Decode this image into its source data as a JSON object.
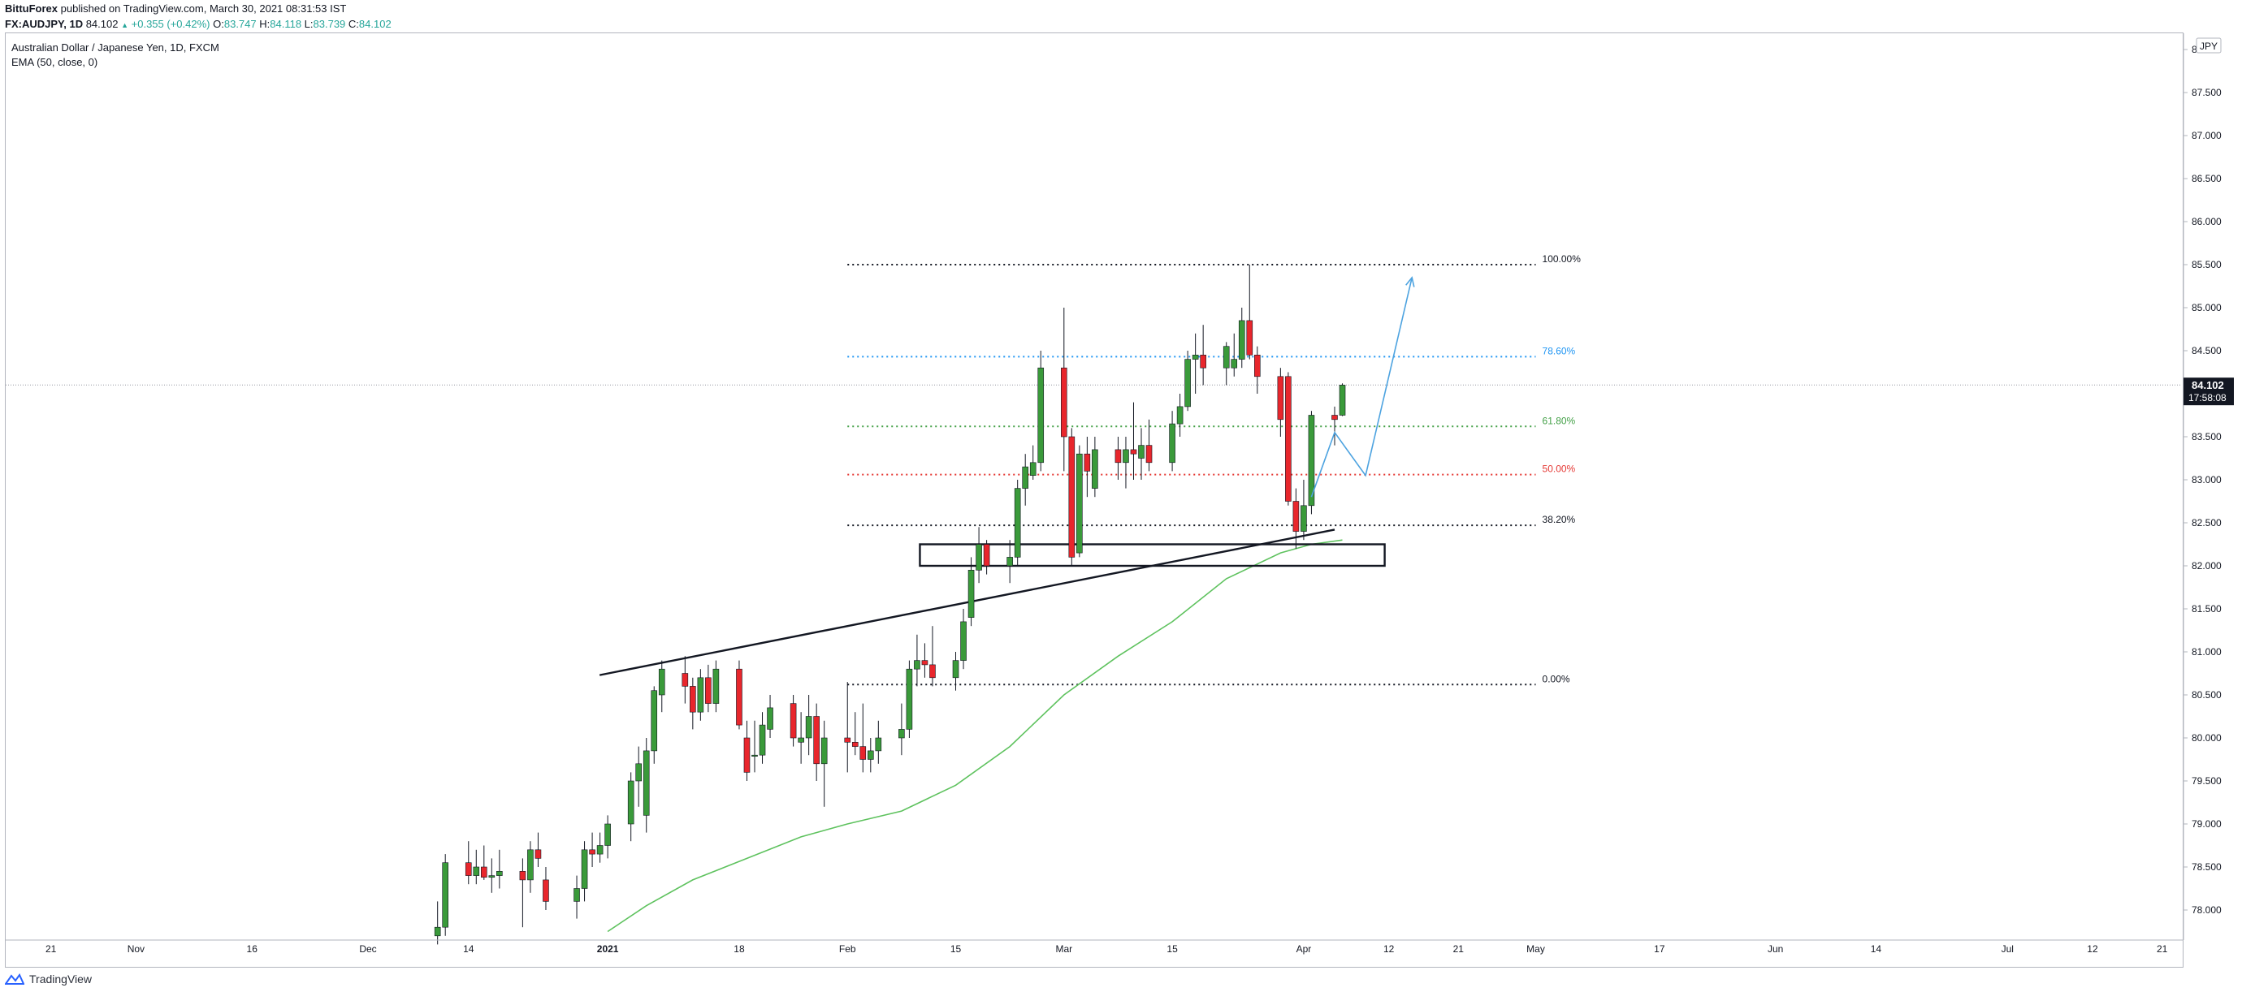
{
  "header": {
    "author": "BittuForex",
    "published": "published on TradingView.com, March 30, 2021 08:31:53 IST",
    "symbol": "FX:AUDJPY, 1D",
    "last": "84.102",
    "change": "+0.355 (+0.42%)",
    "open_label": "O:",
    "open": "83.747",
    "high_label": "H:",
    "high": "84.118",
    "low_label": "L:",
    "low": "83.739",
    "close_label": "C:",
    "close": "84.102"
  },
  "legend": {
    "title": "Australian Dollar / Japanese Yen, 1D, FXCM",
    "indicator": "EMA (50, close, 0)"
  },
  "footer": {
    "brand": "TradingView"
  },
  "colors": {
    "up": "#3a9a3a",
    "down": "#e8262c",
    "ema": "#5ec25e",
    "fib_100": "#131722",
    "fib_786": "#2196f3",
    "fib_618": "#43a047",
    "fib_50": "#e53935",
    "fib_382": "#131722",
    "fib_0": "#131722",
    "projection": "#4da3e0",
    "price_tag": "#131722"
  },
  "chart_data": {
    "type": "candlestick",
    "currency_badge": "JPY",
    "price_tag": {
      "price": 84.102,
      "label": "84.102",
      "countdown": "17:58:08"
    },
    "y_axis": {
      "range": [
        77.6,
        88.0
      ],
      "ticks": [
        {
          "value": 78.0,
          "label": "78.000"
        },
        {
          "value": 78.5,
          "label": "78.500"
        },
        {
          "value": 79.0,
          "label": "79.000"
        },
        {
          "value": 79.5,
          "label": "79.500"
        },
        {
          "value": 80.0,
          "label": "80.000"
        },
        {
          "value": 80.5,
          "label": "80.500"
        },
        {
          "value": 81.0,
          "label": "81.000"
        },
        {
          "value": 81.5,
          "label": "81.500"
        },
        {
          "value": 82.0,
          "label": "82.000"
        },
        {
          "value": 82.5,
          "label": "82.500"
        },
        {
          "value": 83.0,
          "label": "83.000"
        },
        {
          "value": 83.5,
          "label": "83.500"
        },
        {
          "value": 84.0,
          "label": "84.000"
        },
        {
          "value": 84.5,
          "label": "84.500"
        },
        {
          "value": 85.0,
          "label": "85.000"
        },
        {
          "value": 85.5,
          "label": "85.500"
        },
        {
          "value": 86.0,
          "label": "86.000"
        },
        {
          "value": 86.5,
          "label": "86.500"
        },
        {
          "value": 87.0,
          "label": "87.000"
        },
        {
          "value": 87.5,
          "label": "87.500"
        },
        {
          "value": 88.0,
          "label": "88.000"
        }
      ]
    },
    "x_axis": {
      "labels": [
        {
          "date": "2020-10-21",
          "label": "21",
          "bold": false
        },
        {
          "date": "2020-11-01",
          "label": "Nov",
          "bold": false
        },
        {
          "date": "2020-11-16",
          "label": "16",
          "bold": false
        },
        {
          "date": "2020-12-01",
          "label": "Dec",
          "bold": false
        },
        {
          "date": "2020-12-14",
          "label": "14",
          "bold": false
        },
        {
          "date": "2021-01-01",
          "label": "2021",
          "bold": true
        },
        {
          "date": "2021-01-18",
          "label": "18",
          "bold": false
        },
        {
          "date": "2021-02-01",
          "label": "Feb",
          "bold": false
        },
        {
          "date": "2021-02-15",
          "label": "15",
          "bold": false
        },
        {
          "date": "2021-03-01",
          "label": "Mar",
          "bold": false
        },
        {
          "date": "2021-03-15",
          "label": "15",
          "bold": false
        },
        {
          "date": "2021-04-01",
          "label": "Apr",
          "bold": false
        },
        {
          "date": "2021-04-12",
          "label": "12",
          "bold": false
        },
        {
          "date": "2021-04-21",
          "label": "21",
          "bold": false
        },
        {
          "date": "2021-05-01",
          "label": "May",
          "bold": false
        },
        {
          "date": "2021-05-17",
          "label": "17",
          "bold": false
        },
        {
          "date": "2021-06-01",
          "label": "Jun",
          "bold": false
        },
        {
          "date": "2021-06-14",
          "label": "14",
          "bold": false
        },
        {
          "date": "2021-07-01",
          "label": "Jul",
          "bold": false
        },
        {
          "date": "2021-07-12",
          "label": "12",
          "bold": false
        },
        {
          "date": "2021-07-21",
          "label": "21",
          "bold": false
        }
      ]
    },
    "candles": [
      {
        "date": "2020-12-10",
        "o": 77.7,
        "h": 78.1,
        "l": 77.6,
        "c": 77.8
      },
      {
        "date": "2020-12-11",
        "o": 77.8,
        "h": 78.65,
        "l": 77.7,
        "c": 78.55
      },
      {
        "date": "2020-12-14",
        "o": 78.55,
        "h": 78.8,
        "l": 78.3,
        "c": 78.4
      },
      {
        "date": "2020-12-15",
        "o": 78.4,
        "h": 78.7,
        "l": 78.3,
        "c": 78.5
      },
      {
        "date": "2020-12-16",
        "o": 78.5,
        "h": 78.75,
        "l": 78.35,
        "c": 78.38
      },
      {
        "date": "2020-12-17",
        "o": 78.38,
        "h": 78.6,
        "l": 78.2,
        "c": 78.4
      },
      {
        "date": "2020-12-18",
        "o": 78.4,
        "h": 78.7,
        "l": 78.25,
        "c": 78.45
      },
      {
        "date": "2020-12-21",
        "o": 78.45,
        "h": 78.6,
        "l": 77.8,
        "c": 78.35
      },
      {
        "date": "2020-12-22",
        "o": 78.35,
        "h": 78.8,
        "l": 78.2,
        "c": 78.7
      },
      {
        "date": "2020-12-23",
        "o": 78.7,
        "h": 78.9,
        "l": 78.5,
        "c": 78.6
      },
      {
        "date": "2020-12-24",
        "o": 78.35,
        "h": 78.5,
        "l": 78.0,
        "c": 78.1
      },
      {
        "date": "2020-12-28",
        "o": 78.1,
        "h": 78.4,
        "l": 77.9,
        "c": 78.25
      },
      {
        "date": "2020-12-29",
        "o": 78.25,
        "h": 78.8,
        "l": 78.1,
        "c": 78.7
      },
      {
        "date": "2020-12-30",
        "o": 78.7,
        "h": 78.9,
        "l": 78.5,
        "c": 78.65
      },
      {
        "date": "2020-12-31",
        "o": 78.65,
        "h": 78.9,
        "l": 78.55,
        "c": 78.75
      },
      {
        "date": "2021-01-01",
        "o": 78.75,
        "h": 79.1,
        "l": 78.6,
        "c": 79.0
      },
      {
        "date": "2021-01-04",
        "o": 79.0,
        "h": 79.6,
        "l": 78.8,
        "c": 79.5
      },
      {
        "date": "2021-01-05",
        "o": 79.5,
        "h": 79.9,
        "l": 79.2,
        "c": 79.7
      },
      {
        "date": "2021-01-06",
        "o": 79.1,
        "h": 80.0,
        "l": 78.9,
        "c": 79.85
      },
      {
        "date": "2021-01-07",
        "o": 79.85,
        "h": 80.6,
        "l": 79.7,
        "c": 80.55
      },
      {
        "date": "2021-01-08",
        "o": 80.5,
        "h": 80.9,
        "l": 80.3,
        "c": 80.8
      },
      {
        "date": "2021-01-11",
        "o": 80.75,
        "h": 80.95,
        "l": 80.4,
        "c": 80.6
      },
      {
        "date": "2021-01-12",
        "o": 80.6,
        "h": 80.7,
        "l": 80.1,
        "c": 80.3
      },
      {
        "date": "2021-01-13",
        "o": 80.3,
        "h": 80.8,
        "l": 80.2,
        "c": 80.7
      },
      {
        "date": "2021-01-14",
        "o": 80.7,
        "h": 80.85,
        "l": 80.3,
        "c": 80.4
      },
      {
        "date": "2021-01-15",
        "o": 80.4,
        "h": 80.9,
        "l": 80.3,
        "c": 80.8
      },
      {
        "date": "2021-01-18",
        "o": 80.8,
        "h": 80.9,
        "l": 80.1,
        "c": 80.15
      },
      {
        "date": "2021-01-19",
        "o": 80.0,
        "h": 80.2,
        "l": 79.5,
        "c": 79.6
      },
      {
        "date": "2021-01-20",
        "o": 79.8,
        "h": 80.2,
        "l": 79.6,
        "c": 79.8
      },
      {
        "date": "2021-01-21",
        "o": 79.8,
        "h": 80.3,
        "l": 79.7,
        "c": 80.15
      },
      {
        "date": "2021-01-22",
        "o": 80.1,
        "h": 80.5,
        "l": 80.0,
        "c": 80.35
      },
      {
        "date": "2021-01-25",
        "o": 80.4,
        "h": 80.5,
        "l": 79.9,
        "c": 80.0
      },
      {
        "date": "2021-01-26",
        "o": 79.95,
        "h": 80.3,
        "l": 79.7,
        "c": 80.0
      },
      {
        "date": "2021-01-27",
        "o": 80.0,
        "h": 80.5,
        "l": 79.8,
        "c": 80.25
      },
      {
        "date": "2021-01-28",
        "o": 80.25,
        "h": 80.4,
        "l": 79.5,
        "c": 79.7
      },
      {
        "date": "2021-01-29",
        "o": 79.7,
        "h": 80.2,
        "l": 79.2,
        "c": 80.0
      },
      {
        "date": "2021-02-01",
        "o": 80.0,
        "h": 80.65,
        "l": 79.6,
        "c": 79.95
      },
      {
        "date": "2021-02-02",
        "o": 79.95,
        "h": 80.3,
        "l": 79.8,
        "c": 79.9
      },
      {
        "date": "2021-02-03",
        "o": 79.9,
        "h": 80.4,
        "l": 79.6,
        "c": 79.75
      },
      {
        "date": "2021-02-04",
        "o": 79.75,
        "h": 80.0,
        "l": 79.6,
        "c": 79.85
      },
      {
        "date": "2021-02-05",
        "o": 79.85,
        "h": 80.2,
        "l": 79.7,
        "c": 80.0
      },
      {
        "date": "2021-02-08",
        "o": 80.0,
        "h": 80.4,
        "l": 79.8,
        "c": 80.1
      },
      {
        "date": "2021-02-09",
        "o": 80.1,
        "h": 80.9,
        "l": 80.0,
        "c": 80.8
      },
      {
        "date": "2021-02-10",
        "o": 80.8,
        "h": 81.2,
        "l": 80.6,
        "c": 80.9
      },
      {
        "date": "2021-02-11",
        "o": 80.9,
        "h": 81.1,
        "l": 80.7,
        "c": 80.85
      },
      {
        "date": "2021-02-12",
        "o": 80.85,
        "h": 81.3,
        "l": 80.6,
        "c": 80.7
      },
      {
        "date": "2021-02-15",
        "o": 80.7,
        "h": 81.0,
        "l": 80.55,
        "c": 80.9
      },
      {
        "date": "2021-02-16",
        "o": 80.9,
        "h": 81.5,
        "l": 80.8,
        "c": 81.35
      },
      {
        "date": "2021-02-17",
        "o": 81.4,
        "h": 82.1,
        "l": 81.3,
        "c": 81.95
      },
      {
        "date": "2021-02-18",
        "o": 81.95,
        "h": 82.45,
        "l": 81.8,
        "c": 82.25
      },
      {
        "date": "2021-02-19",
        "o": 82.25,
        "h": 82.3,
        "l": 81.9,
        "c": 82.0
      },
      {
        "date": "2021-02-22",
        "o": 82.0,
        "h": 82.3,
        "l": 81.8,
        "c": 82.1
      },
      {
        "date": "2021-02-23",
        "o": 82.1,
        "h": 83.0,
        "l": 82.0,
        "c": 82.9
      },
      {
        "date": "2021-02-24",
        "o": 82.9,
        "h": 83.3,
        "l": 82.7,
        "c": 83.15
      },
      {
        "date": "2021-02-25",
        "o": 83.05,
        "h": 83.4,
        "l": 83.0,
        "c": 83.2
      },
      {
        "date": "2021-02-26",
        "o": 83.2,
        "h": 84.5,
        "l": 83.1,
        "c": 84.3
      },
      {
        "date": "2021-03-01",
        "o": 84.3,
        "h": 85.0,
        "l": 83.1,
        "c": 83.5
      },
      {
        "date": "2021-03-02",
        "o": 83.5,
        "h": 83.6,
        "l": 82.0,
        "c": 82.1
      },
      {
        "date": "2021-03-03",
        "o": 82.15,
        "h": 83.4,
        "l": 82.1,
        "c": 83.3
      },
      {
        "date": "2021-03-04",
        "o": 83.3,
        "h": 83.5,
        "l": 82.8,
        "c": 83.1
      },
      {
        "date": "2021-03-05",
        "o": 82.9,
        "h": 83.5,
        "l": 82.8,
        "c": 83.35
      },
      {
        "date": "2021-03-08",
        "o": 83.35,
        "h": 83.5,
        "l": 83.0,
        "c": 83.2
      },
      {
        "date": "2021-03-09",
        "o": 83.2,
        "h": 83.5,
        "l": 82.9,
        "c": 83.35
      },
      {
        "date": "2021-03-10",
        "o": 83.35,
        "h": 83.9,
        "l": 83.0,
        "c": 83.3
      },
      {
        "date": "2021-03-11",
        "o": 83.25,
        "h": 83.6,
        "l": 83.0,
        "c": 83.4
      },
      {
        "date": "2021-03-12",
        "o": 83.4,
        "h": 83.7,
        "l": 83.1,
        "c": 83.2
      },
      {
        "date": "2021-03-15",
        "o": 83.2,
        "h": 83.8,
        "l": 83.1,
        "c": 83.65
      },
      {
        "date": "2021-03-16",
        "o": 83.65,
        "h": 84.0,
        "l": 83.5,
        "c": 83.85
      },
      {
        "date": "2021-03-17",
        "o": 83.85,
        "h": 84.5,
        "l": 83.8,
        "c": 84.4
      },
      {
        "date": "2021-03-18",
        "o": 84.4,
        "h": 84.7,
        "l": 84.0,
        "c": 84.45
      },
      {
        "date": "2021-03-19",
        "o": 84.45,
        "h": 84.8,
        "l": 84.1,
        "c": 84.3
      },
      {
        "date": "2021-03-22",
        "o": 84.3,
        "h": 84.6,
        "l": 84.1,
        "c": 84.55
      },
      {
        "date": "2021-03-23",
        "o": 84.3,
        "h": 84.7,
        "l": 84.2,
        "c": 84.4
      },
      {
        "date": "2021-03-24",
        "o": 84.4,
        "h": 85.0,
        "l": 84.3,
        "c": 84.85
      },
      {
        "date": "2021-03-25",
        "o": 84.85,
        "h": 85.5,
        "l": 84.4,
        "c": 84.45
      },
      {
        "date": "2021-03-26",
        "o": 84.45,
        "h": 84.55,
        "l": 84.0,
        "c": 84.2
      },
      {
        "date": "2021-03-29",
        "o": 84.2,
        "h": 84.3,
        "l": 83.5,
        "c": 83.7
      },
      {
        "date": "2021-03-30",
        "o": 84.2,
        "h": 84.25,
        "l": 82.7,
        "c": 82.75
      },
      {
        "date": "2021-03-31",
        "o": 82.75,
        "h": 82.9,
        "l": 82.2,
        "c": 82.4
      },
      {
        "date": "2021-04-01",
        "o": 82.4,
        "h": 83.0,
        "l": 82.3,
        "c": 82.7
      },
      {
        "date": "2021-04-02",
        "o": 82.7,
        "h": 83.8,
        "l": 82.6,
        "c": 83.75
      },
      {
        "date": "2021-04-05",
        "o": 83.75,
        "h": 83.85,
        "l": 83.4,
        "c": 83.7
      },
      {
        "date": "2021-04-06",
        "o": 83.75,
        "h": 84.12,
        "l": 83.74,
        "c": 84.1
      }
    ],
    "ema50": [
      [
        "2021-01-01",
        77.75
      ],
      [
        "2021-01-06",
        78.05
      ],
      [
        "2021-01-12",
        78.35
      ],
      [
        "2021-01-19",
        78.6
      ],
      [
        "2021-01-26",
        78.85
      ],
      [
        "2021-02-01",
        79.0
      ],
      [
        "2021-02-08",
        79.15
      ],
      [
        "2021-02-15",
        79.45
      ],
      [
        "2021-02-22",
        79.9
      ],
      [
        "2021-03-01",
        80.5
      ],
      [
        "2021-03-08",
        80.95
      ],
      [
        "2021-03-15",
        81.35
      ],
      [
        "2021-03-22",
        81.85
      ],
      [
        "2021-03-29",
        82.15
      ],
      [
        "2021-04-02",
        82.25
      ],
      [
        "2021-04-06",
        82.3
      ]
    ],
    "fibonacci": {
      "start_date": "2021-02-01",
      "end_date": "2021-05-01",
      "levels": [
        {
          "label": "100.00%",
          "price": 85.5,
          "color_key": "fib_100"
        },
        {
          "label": "78.60%",
          "price": 84.43,
          "color_key": "fib_786"
        },
        {
          "label": "61.80%",
          "price": 83.62,
          "color_key": "fib_618"
        },
        {
          "label": "50.00%",
          "price": 83.06,
          "color_key": "fib_50"
        },
        {
          "label": "38.20%",
          "price": 82.47,
          "color_key": "fib_382"
        },
        {
          "label": "0.00%",
          "price": 80.62,
          "color_key": "fib_0"
        }
      ]
    },
    "trendline": {
      "from": [
        "2021-01-01",
        80.73
      ],
      "to": [
        "2021-04-05",
        82.42
      ]
    },
    "zone": {
      "from_date": "2021-02-11",
      "to_date": "2021-04-10",
      "top": 82.25,
      "bottom": 82.0
    },
    "projection": [
      [
        "2021-04-02",
        82.8
      ],
      [
        "2021-04-05",
        83.55
      ],
      [
        "2021-04-09",
        83.05
      ],
      [
        "2021-04-15",
        85.35
      ]
    ]
  }
}
